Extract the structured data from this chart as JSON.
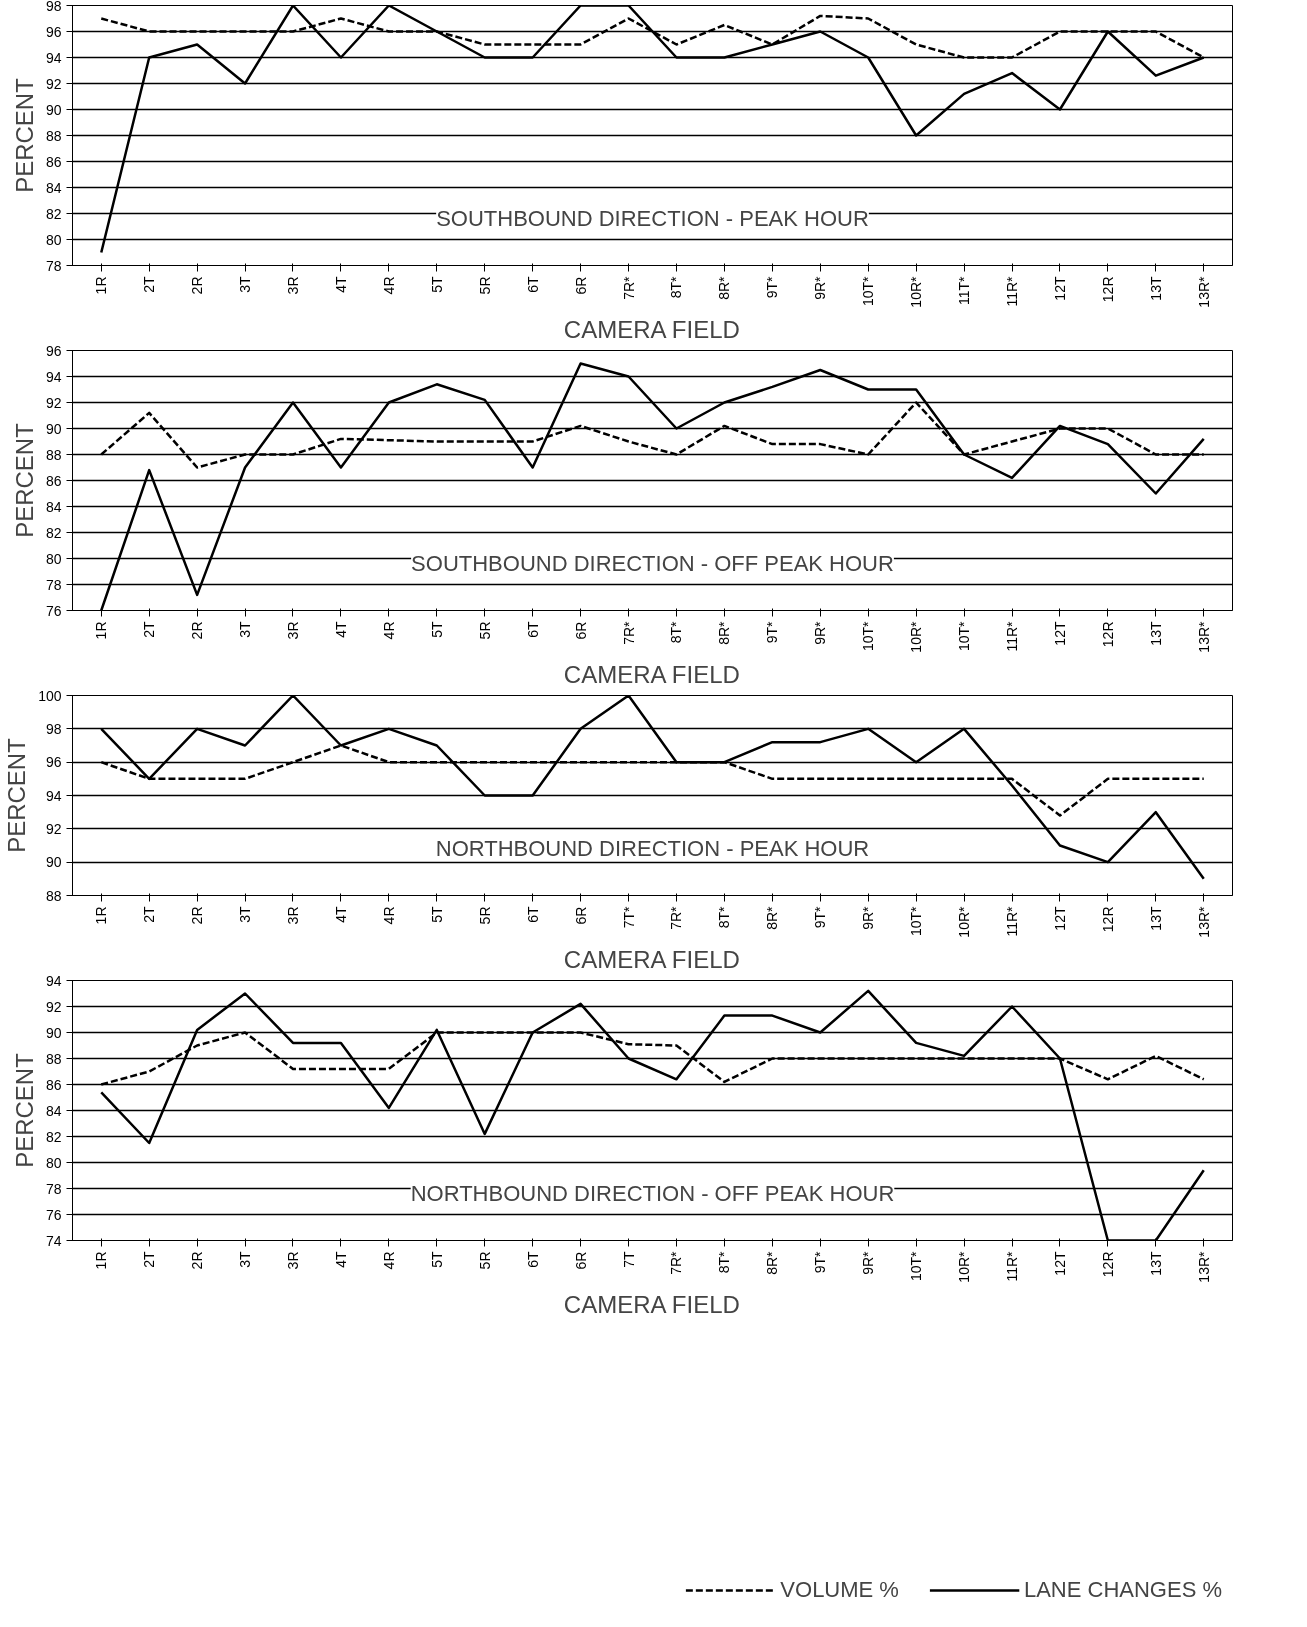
{
  "chart_data": [
    {
      "type": "line",
      "title": "SOUTHBOUND DIRECTION - PEAK HOUR",
      "xlabel": "CAMERA FIELD",
      "ylabel": "PERCENT",
      "categories": [
        "1R",
        "2T",
        "2R",
        "3T",
        "3R",
        "4T",
        "4R",
        "5T",
        "5R",
        "6T",
        "6R",
        "7R*",
        "8T*",
        "8R*",
        "9T*",
        "9R*",
        "10T*",
        "10R*",
        "11T*",
        "11R*",
        "12T",
        "12R",
        "13T",
        "13R*"
      ],
      "ylim": [
        78,
        98
      ],
      "yticks": [
        78,
        80,
        82,
        84,
        86,
        88,
        90,
        92,
        94,
        96,
        98
      ],
      "grid": "y",
      "series": [
        {
          "color": "#000000",
          "line_style": "dashed",
          "values": [
            97,
            96,
            96,
            96,
            96,
            97,
            96,
            96,
            95,
            95,
            95,
            97,
            95,
            96.5,
            95,
            97.2,
            97,
            95,
            94,
            94,
            96,
            96,
            96,
            94
          ]
        },
        {
          "color": "#000000",
          "line_style": "solid",
          "values": [
            79,
            94,
            95,
            92,
            98,
            94,
            98,
            96,
            94,
            94,
            98,
            98,
            94,
            94,
            95,
            96,
            94,
            88,
            91.2,
            92.8,
            90,
            96,
            92.6,
            94
          ]
        }
      ]
    },
    {
      "type": "line",
      "title": "SOUTHBOUND DIRECTION - OFF PEAK HOUR",
      "xlabel": "CAMERA FIELD",
      "ylabel": "PERCENT",
      "categories": [
        "1R",
        "2T",
        "2R",
        "3T",
        "3R",
        "4T",
        "4R",
        "5T",
        "5R",
        "6T",
        "6R",
        "7R*",
        "8T*",
        "8R*",
        "9T*",
        "9R*",
        "10T*",
        "10R*",
        "10T*",
        "11R*",
        "12T",
        "12R",
        "13T",
        "13R*"
      ],
      "ylim": [
        76,
        96
      ],
      "yticks": [
        76,
        78,
        80,
        82,
        84,
        86,
        88,
        90,
        92,
        94,
        96
      ],
      "grid": "y",
      "series": [
        {
          "color": "#000000",
          "line_style": "dashed",
          "values": [
            88,
            91.2,
            87,
            88,
            88,
            89.2,
            89.1,
            89,
            89,
            89,
            90.2,
            89,
            88,
            90.2,
            88.8,
            88.8,
            88,
            92,
            88,
            89,
            90,
            90,
            88,
            88
          ]
        },
        {
          "color": "#000000",
          "line_style": "solid",
          "values": [
            76,
            86.8,
            77.2,
            87,
            92,
            87,
            92,
            93.4,
            92.2,
            87,
            95,
            94,
            90,
            92,
            93.2,
            94.5,
            93,
            93,
            88,
            86.2,
            90.2,
            88.8,
            85,
            89.2
          ]
        }
      ]
    },
    {
      "type": "line",
      "title": "NORTHBOUND DIRECTION - PEAK HOUR",
      "xlabel": "CAMERA FIELD",
      "ylabel": "PERCENT",
      "categories": [
        "1R",
        "2T",
        "2R",
        "3T",
        "3R",
        "4T",
        "4R",
        "5T",
        "5R",
        "6T",
        "6R",
        "7T*",
        "7R*",
        "8T*",
        "8R*",
        "9T*",
        "9R*",
        "10T*",
        "10R*",
        "11R*",
        "12T",
        "12R",
        "13T",
        "13R*"
      ],
      "ylim": [
        88,
        100
      ],
      "yticks": [
        88,
        90,
        92,
        94,
        96,
        98,
        100
      ],
      "grid": "y",
      "series": [
        {
          "color": "#000000",
          "line_style": "dashed",
          "values": [
            96,
            95,
            95,
            95,
            96,
            97,
            96,
            96,
            96,
            96,
            96,
            96,
            96,
            96,
            95,
            95,
            95,
            95,
            95,
            95,
            92.8,
            95,
            95,
            95
          ]
        },
        {
          "color": "#000000",
          "line_style": "solid",
          "values": [
            98,
            95,
            98,
            97,
            100,
            97,
            98,
            97,
            94,
            94,
            98,
            100,
            96,
            96,
            97.2,
            97.2,
            98,
            96,
            98,
            94.6,
            91,
            90,
            93,
            89
          ]
        }
      ]
    },
    {
      "type": "line",
      "title": "NORTHBOUND DIRECTION - OFF PEAK HOUR",
      "xlabel": "CAMERA FIELD",
      "ylabel": "PERCENT",
      "categories": [
        "1R",
        "2T",
        "2R",
        "3T",
        "3R",
        "4T",
        "4R",
        "5T",
        "5R",
        "6T",
        "6R",
        "7T",
        "7R*",
        "8T*",
        "8R*",
        "9T*",
        "9R*",
        "10T*",
        "10R*",
        "11R*",
        "12T",
        "12R",
        "13T",
        "13R*"
      ],
      "ylim": [
        74,
        94
      ],
      "yticks": [
        74,
        76,
        78,
        80,
        82,
        84,
        86,
        88,
        90,
        92,
        94
      ],
      "grid": "y",
      "legend": "bottom right",
      "series": [
        {
          "name": "VOLUME %",
          "color": "#000000",
          "line_style": "dashed",
          "values": [
            86,
            87,
            89,
            90,
            87.2,
            87.2,
            87.2,
            90,
            90,
            90,
            90,
            89.1,
            89,
            86.2,
            88,
            88,
            88,
            88,
            88,
            88,
            88,
            86.4,
            88.2,
            86.4
          ]
        },
        {
          "name": "LANE CHANGES %",
          "color": "#000000",
          "line_style": "solid",
          "values": [
            85.4,
            81.5,
            90.2,
            93,
            89.2,
            89.2,
            84.2,
            90.2,
            82.2,
            90,
            92.2,
            88,
            86.4,
            91.3,
            91.3,
            90,
            93.2,
            89.2,
            88.2,
            92,
            88,
            74,
            74,
            79.4
          ]
        }
      ]
    }
  ]
}
